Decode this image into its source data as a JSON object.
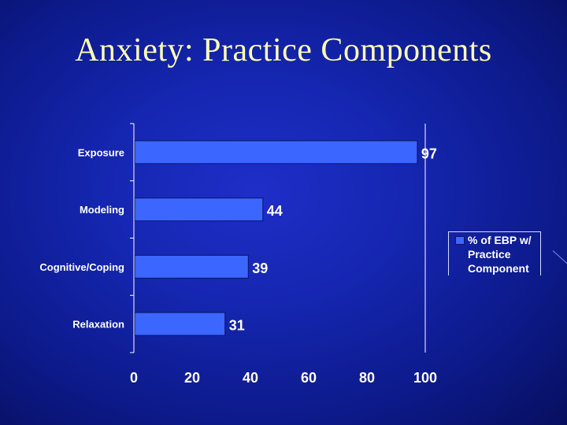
{
  "slide": {
    "title": "Anxiety: Practice Components"
  },
  "chart_data": {
    "type": "bar",
    "orientation": "horizontal",
    "categories": [
      "Exposure",
      "Modeling",
      "Cognitive/Coping",
      "Relaxation"
    ],
    "series": [
      {
        "name": "% of EBP w/ Practice Component",
        "values": [
          97,
          44,
          39,
          31
        ],
        "color": "#3b66ff"
      }
    ],
    "data_labels": [
      "97",
      "44",
      "39",
      "31"
    ],
    "xlim": [
      0,
      100
    ],
    "x_ticks": [
      "0",
      "20",
      "40",
      "60",
      "80",
      "100"
    ],
    "grid": false,
    "legend_position": "right",
    "colors": {
      "bar": "#3b66ff",
      "axis": "#ffffff",
      "text": "#ffffff",
      "title": "#ffffb8"
    }
  }
}
